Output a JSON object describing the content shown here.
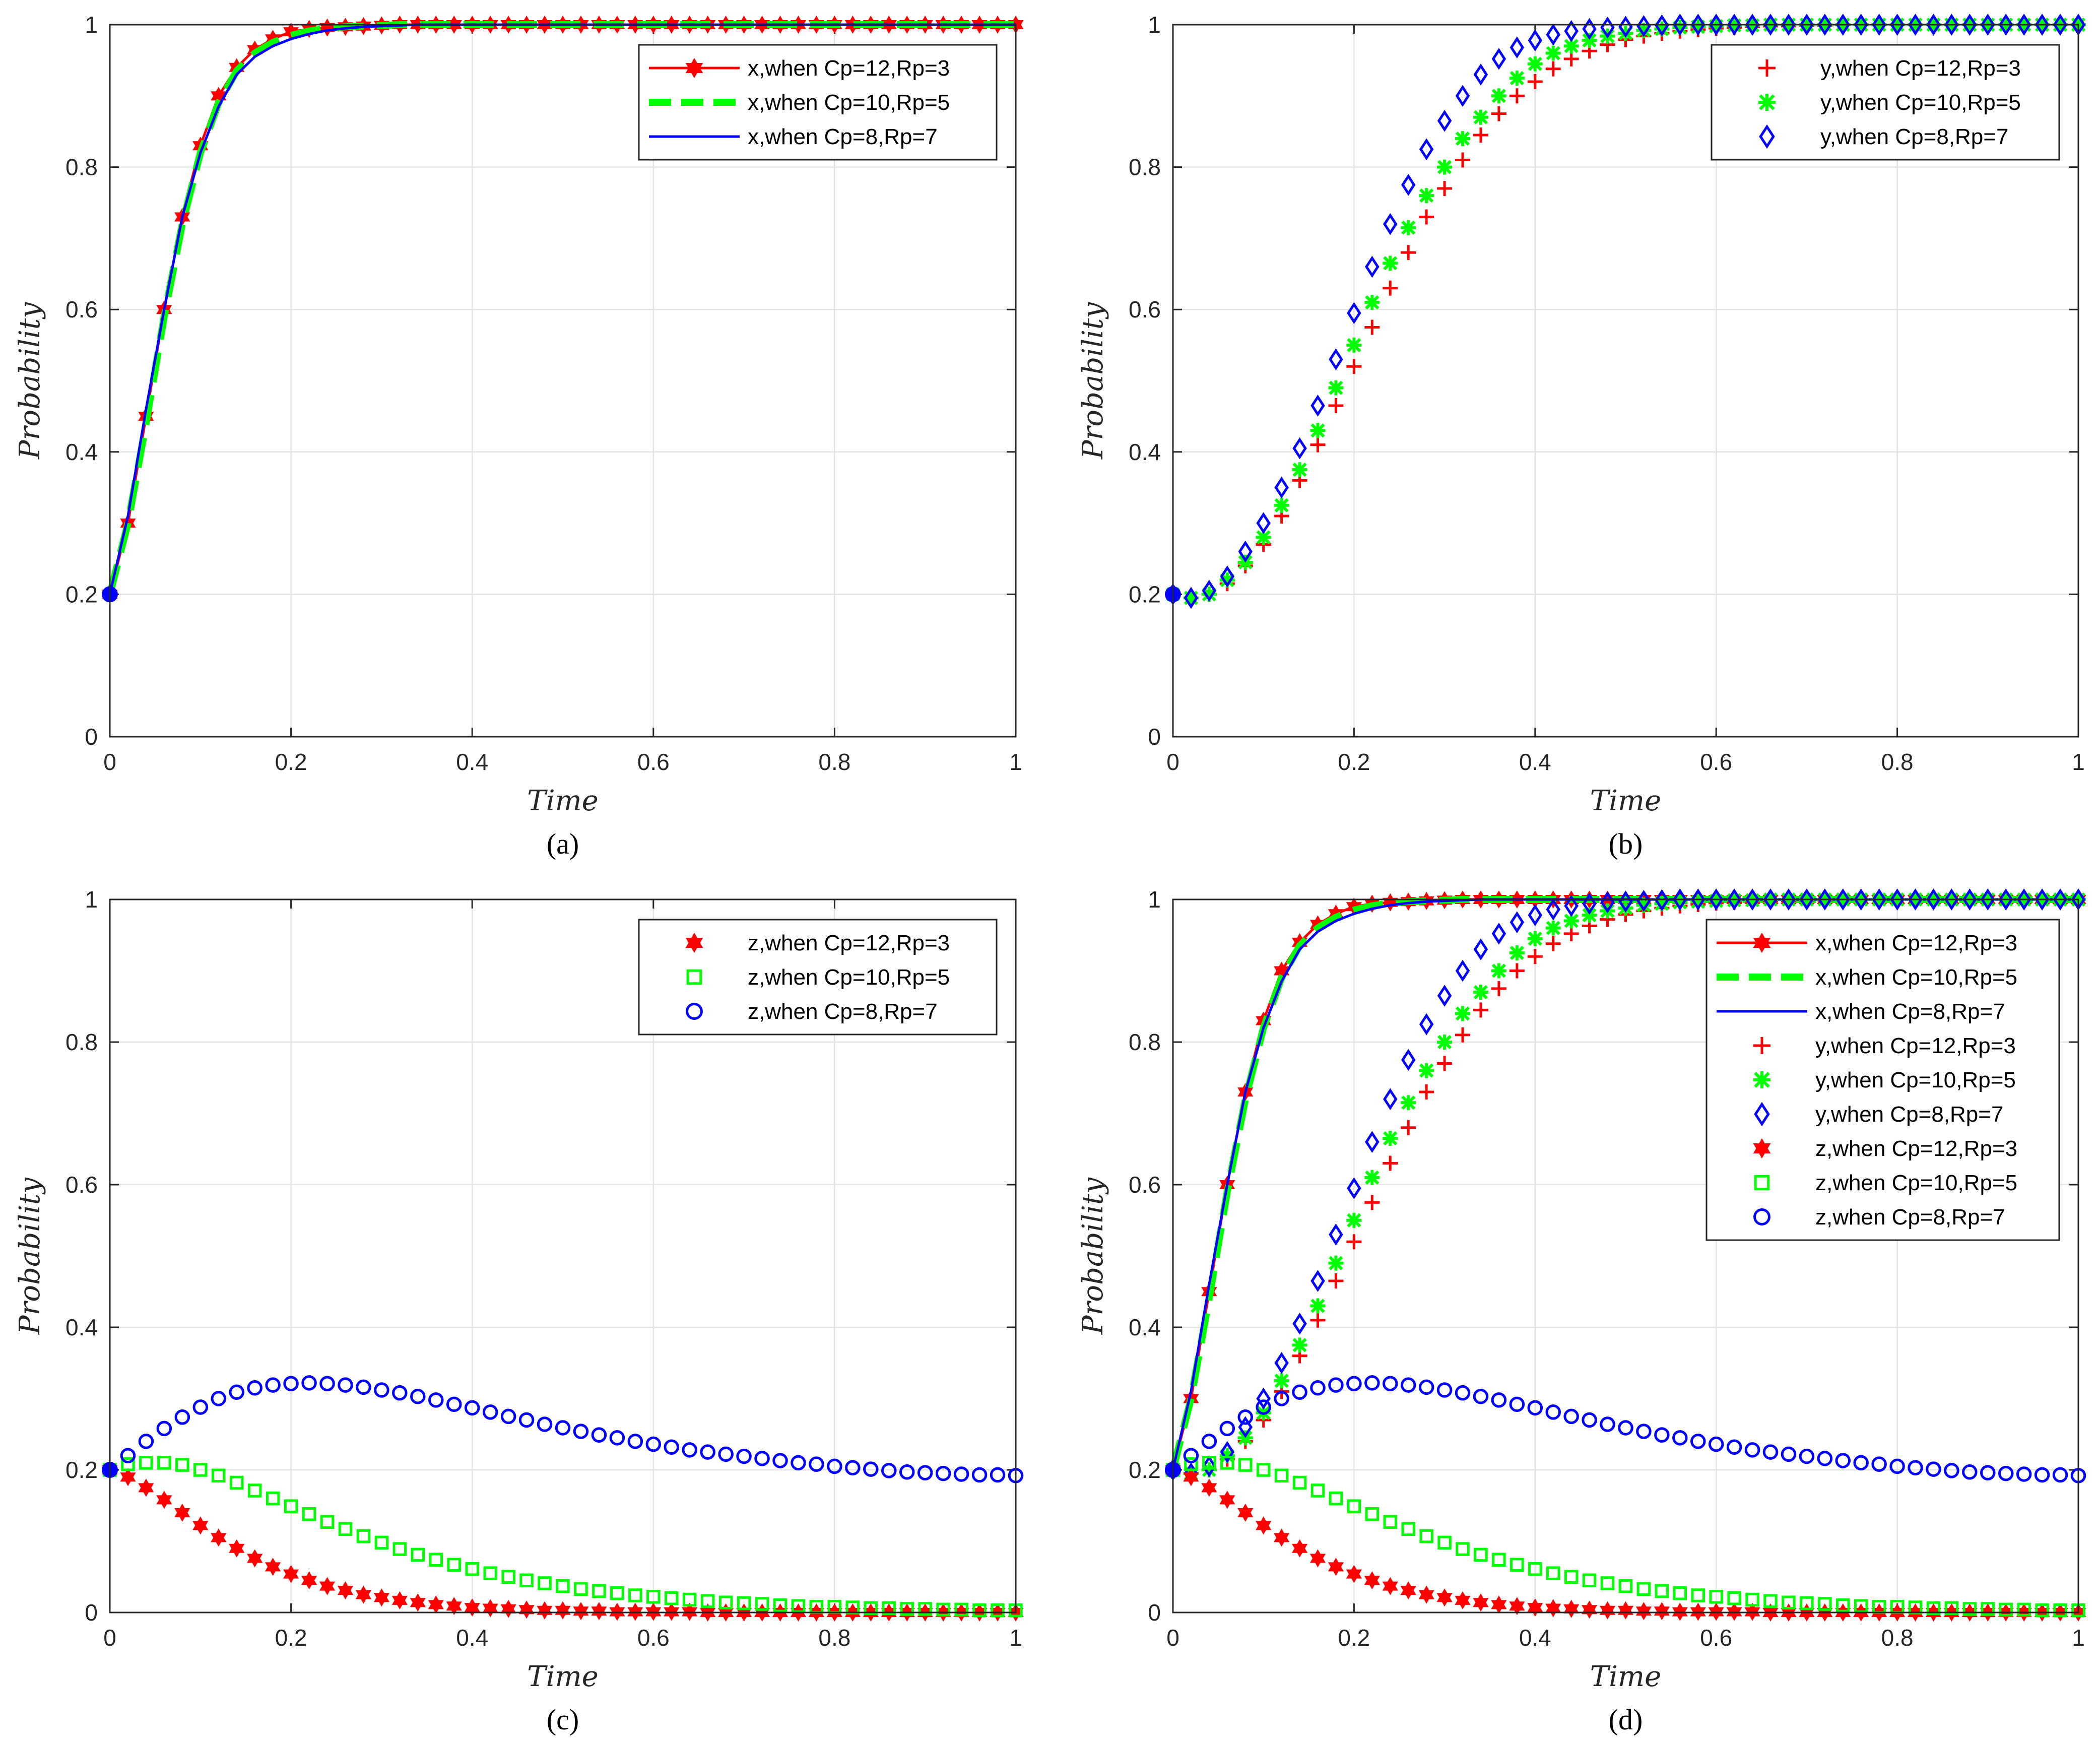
{
  "chart_data": [
    {
      "type": "line",
      "panel_label": "(a)",
      "xlabel": "Time",
      "ylabel": "Probability",
      "xlim": [
        0,
        1
      ],
      "ylim": [
        0,
        1
      ],
      "xticks": [
        "0",
        "0.2",
        "0.4",
        "0.6",
        "0.8",
        "1"
      ],
      "yticks": [
        "0",
        "0.2",
        "0.4",
        "0.6",
        "0.8",
        "1"
      ],
      "grid": true,
      "legend_position": "top-right",
      "series": [
        {
          "name": "x,when Cp=12,Rp=3",
          "var": "x",
          "case": "c12",
          "color": "#ff0000",
          "marker": "hexagram",
          "line": "solid"
        },
        {
          "name": "x,when Cp=10,Rp=5",
          "var": "x",
          "case": "c10",
          "color": "#00ff00",
          "marker": "none",
          "line": "dashed"
        },
        {
          "name": "x,when Cp=8,Rp=7",
          "var": "x",
          "case": "c8",
          "color": "#0000ff",
          "marker": "none",
          "line": "solid"
        }
      ]
    },
    {
      "type": "scatter",
      "panel_label": "(b)",
      "xlabel": "Time",
      "ylabel": "Probability",
      "xlim": [
        0,
        1
      ],
      "ylim": [
        0,
        1
      ],
      "xticks": [
        "0",
        "0.2",
        "0.4",
        "0.6",
        "0.8",
        "1"
      ],
      "yticks": [
        "0",
        "0.2",
        "0.4",
        "0.6",
        "0.8",
        "1"
      ],
      "grid": true,
      "legend_position": "top-right",
      "series": [
        {
          "name": "y,when Cp=12,Rp=3",
          "var": "y",
          "case": "c12",
          "color": "#ff0000",
          "marker": "plus",
          "line": "none"
        },
        {
          "name": "y,when Cp=10,Rp=5",
          "var": "y",
          "case": "c10",
          "color": "#00ff00",
          "marker": "asterisk",
          "line": "none"
        },
        {
          "name": "y,when Cp=8,Rp=7",
          "var": "y",
          "case": "c8",
          "color": "#0000ff",
          "marker": "diamond",
          "line": "none"
        }
      ]
    },
    {
      "type": "scatter",
      "panel_label": "(c)",
      "xlabel": "Time",
      "ylabel": "Probability",
      "xlim": [
        0,
        1
      ],
      "ylim": [
        0,
        1
      ],
      "xticks": [
        "0",
        "0.2",
        "0.4",
        "0.6",
        "0.8",
        "1"
      ],
      "yticks": [
        "0",
        "0.2",
        "0.4",
        "0.6",
        "0.8",
        "1"
      ],
      "grid": true,
      "legend_position": "top-right",
      "series": [
        {
          "name": "z,when Cp=12,Rp=3",
          "var": "z",
          "case": "c12",
          "color": "#ff0000",
          "marker": "hexagram",
          "line": "none"
        },
        {
          "name": "z,when Cp=10,Rp=5",
          "var": "z",
          "case": "c10",
          "color": "#00ff00",
          "marker": "square",
          "line": "none"
        },
        {
          "name": "z,when Cp=8,Rp=7",
          "var": "z",
          "case": "c8",
          "color": "#0000ff",
          "marker": "circle",
          "line": "none"
        }
      ]
    },
    {
      "type": "line",
      "panel_label": "(d)",
      "xlabel": "Time",
      "ylabel": "Probability",
      "xlim": [
        0,
        1
      ],
      "ylim": [
        0,
        1
      ],
      "xticks": [
        "0",
        "0.2",
        "0.4",
        "0.6",
        "0.8",
        "1"
      ],
      "yticks": [
        "0",
        "0.2",
        "0.4",
        "0.6",
        "0.8",
        "1"
      ],
      "grid": true,
      "legend_position": "top-right",
      "series": [
        {
          "name": "x,when Cp=12,Rp=3",
          "var": "x",
          "case": "c12",
          "color": "#ff0000",
          "marker": "hexagram",
          "line": "solid"
        },
        {
          "name": "x,when Cp=10,Rp=5",
          "var": "x",
          "case": "c10",
          "color": "#00ff00",
          "marker": "none",
          "line": "dashed"
        },
        {
          "name": "x,when Cp=8,Rp=7",
          "var": "x",
          "case": "c8",
          "color": "#0000ff",
          "marker": "none",
          "line": "solid"
        },
        {
          "name": "y,when Cp=12,Rp=3",
          "var": "y",
          "case": "c12",
          "color": "#ff0000",
          "marker": "plus",
          "line": "none"
        },
        {
          "name": "y,when Cp=10,Rp=5",
          "var": "y",
          "case": "c10",
          "color": "#00ff00",
          "marker": "asterisk",
          "line": "none"
        },
        {
          "name": "y,when Cp=8,Rp=7",
          "var": "y",
          "case": "c8",
          "color": "#0000ff",
          "marker": "diamond",
          "line": "none"
        },
        {
          "name": "z,when Cp=12,Rp=3",
          "var": "z",
          "case": "c12",
          "color": "#ff0000",
          "marker": "hexagram",
          "line": "none"
        },
        {
          "name": "z,when Cp=10,Rp=5",
          "var": "z",
          "case": "c10",
          "color": "#00ff00",
          "marker": "square",
          "line": "none"
        },
        {
          "name": "z,when Cp=8,Rp=7",
          "var": "z",
          "case": "c8",
          "color": "#0000ff",
          "marker": "circle",
          "line": "none"
        }
      ]
    }
  ],
  "curves": {
    "time": [
      0,
      0.02,
      0.04,
      0.06,
      0.08,
      0.1,
      0.12,
      0.14,
      0.16,
      0.18,
      0.2,
      0.22,
      0.24,
      0.26,
      0.28,
      0.3,
      0.32,
      0.34,
      0.36,
      0.38,
      0.4,
      0.42,
      0.44,
      0.46,
      0.48,
      0.5,
      0.52,
      0.54,
      0.56,
      0.58,
      0.6,
      0.62,
      0.64,
      0.66,
      0.68,
      0.7,
      0.72,
      0.74,
      0.76,
      0.78,
      0.8,
      0.82,
      0.84,
      0.86,
      0.88,
      0.9,
      0.92,
      0.94,
      0.96,
      0.98,
      1.0
    ],
    "x": {
      "c12": [
        0.2,
        0.3,
        0.45,
        0.6,
        0.73,
        0.83,
        0.9,
        0.94,
        0.965,
        0.98,
        0.99,
        0.994,
        0.996,
        0.997,
        0.998,
        0.999,
        1.0,
        1.0,
        1.0,
        1.0,
        1.0,
        1.0,
        1.0,
        1.0,
        1.0,
        1.0,
        1.0,
        1.0,
        1.0,
        1.0,
        1.0,
        1.0,
        1.0,
        1.0,
        1.0,
        1.0,
        1.0,
        1.0,
        1.0,
        1.0,
        1.0,
        1.0,
        1.0,
        1.0,
        1.0,
        1.0,
        1.0,
        1.0,
        1.0,
        1.0,
        1.0
      ],
      "c10": [
        0.2,
        0.3,
        0.44,
        0.59,
        0.72,
        0.82,
        0.89,
        0.935,
        0.96,
        0.975,
        0.985,
        0.991,
        0.995,
        0.997,
        0.998,
        0.999,
        1.0,
        1.0,
        1.0,
        1.0,
        1.0,
        1.0,
        1.0,
        1.0,
        1.0,
        1.0,
        1.0,
        1.0,
        1.0,
        1.0,
        1.0,
        1.0,
        1.0,
        1.0,
        1.0,
        1.0,
        1.0,
        1.0,
        1.0,
        1.0,
        1.0,
        1.0,
        1.0,
        1.0,
        1.0,
        1.0,
        1.0,
        1.0,
        1.0,
        1.0,
        1.0
      ],
      "c8": [
        0.2,
        0.31,
        0.46,
        0.6,
        0.73,
        0.82,
        0.885,
        0.93,
        0.955,
        0.97,
        0.98,
        0.987,
        0.992,
        0.995,
        0.997,
        0.998,
        0.999,
        1.0,
        1.0,
        1.0,
        1.0,
        1.0,
        1.0,
        1.0,
        1.0,
        1.0,
        1.0,
        1.0,
        1.0,
        1.0,
        1.0,
        1.0,
        1.0,
        1.0,
        1.0,
        1.0,
        1.0,
        1.0,
        1.0,
        1.0,
        1.0,
        1.0,
        1.0,
        1.0,
        1.0,
        1.0,
        1.0,
        1.0,
        1.0,
        1.0,
        1.0
      ]
    },
    "y": {
      "c12": [
        0.2,
        0.195,
        0.2,
        0.215,
        0.24,
        0.27,
        0.31,
        0.36,
        0.41,
        0.465,
        0.52,
        0.575,
        0.63,
        0.68,
        0.73,
        0.77,
        0.81,
        0.845,
        0.875,
        0.9,
        0.92,
        0.938,
        0.952,
        0.963,
        0.972,
        0.979,
        0.984,
        0.988,
        0.991,
        0.993,
        0.995,
        0.996,
        0.997,
        0.998,
        0.998,
        0.999,
        0.999,
        1.0,
        1.0,
        1.0,
        1.0,
        1.0,
        1.0,
        1.0,
        1.0,
        1.0,
        1.0,
        1.0,
        1.0,
        1.0,
        1.0
      ],
      "c10": [
        0.2,
        0.195,
        0.2,
        0.22,
        0.245,
        0.28,
        0.325,
        0.375,
        0.43,
        0.49,
        0.55,
        0.61,
        0.665,
        0.715,
        0.76,
        0.8,
        0.84,
        0.87,
        0.9,
        0.925,
        0.945,
        0.96,
        0.97,
        0.978,
        0.984,
        0.988,
        0.992,
        0.994,
        0.996,
        0.997,
        0.998,
        0.999,
        0.999,
        1.0,
        1.0,
        1.0,
        1.0,
        1.0,
        1.0,
        1.0,
        1.0,
        1.0,
        1.0,
        1.0,
        1.0,
        1.0,
        1.0,
        1.0,
        1.0,
        1.0,
        1.0
      ],
      "c8": [
        0.2,
        0.195,
        0.205,
        0.225,
        0.26,
        0.3,
        0.35,
        0.405,
        0.465,
        0.53,
        0.595,
        0.66,
        0.72,
        0.775,
        0.825,
        0.865,
        0.9,
        0.93,
        0.952,
        0.968,
        0.978,
        0.986,
        0.991,
        0.994,
        0.996,
        0.997,
        0.998,
        0.999,
        1.0,
        1.0,
        1.0,
        1.0,
        1.0,
        1.0,
        1.0,
        1.0,
        1.0,
        1.0,
        1.0,
        1.0,
        1.0,
        1.0,
        1.0,
        1.0,
        1.0,
        1.0,
        1.0,
        1.0,
        1.0,
        1.0,
        1.0
      ]
    },
    "z": {
      "c12": [
        0.2,
        0.19,
        0.175,
        0.158,
        0.14,
        0.122,
        0.105,
        0.09,
        0.076,
        0.064,
        0.054,
        0.045,
        0.037,
        0.031,
        0.025,
        0.021,
        0.017,
        0.014,
        0.011,
        0.009,
        0.007,
        0.006,
        0.005,
        0.004,
        0.003,
        0.003,
        0.002,
        0.002,
        0.001,
        0.001,
        0.001,
        0.001,
        0.001,
        0.0,
        0.0,
        0.0,
        0.0,
        0.0,
        0.0,
        0.0,
        0.0,
        0.0,
        0.0,
        0.0,
        0.0,
        0.0,
        0.0,
        0.0,
        0.0,
        0.0,
        0.0
      ],
      "c10": [
        0.2,
        0.208,
        0.21,
        0.21,
        0.207,
        0.2,
        0.192,
        0.182,
        0.171,
        0.16,
        0.149,
        0.138,
        0.127,
        0.117,
        0.107,
        0.098,
        0.089,
        0.081,
        0.074,
        0.067,
        0.061,
        0.055,
        0.05,
        0.045,
        0.041,
        0.037,
        0.033,
        0.03,
        0.027,
        0.024,
        0.022,
        0.02,
        0.018,
        0.016,
        0.014,
        0.013,
        0.012,
        0.01,
        0.009,
        0.008,
        0.008,
        0.007,
        0.006,
        0.006,
        0.005,
        0.005,
        0.004,
        0.004,
        0.003,
        0.003,
        0.003
      ],
      "c8": [
        0.2,
        0.22,
        0.24,
        0.258,
        0.274,
        0.288,
        0.3,
        0.309,
        0.315,
        0.319,
        0.321,
        0.322,
        0.321,
        0.319,
        0.316,
        0.312,
        0.308,
        0.303,
        0.298,
        0.292,
        0.287,
        0.281,
        0.275,
        0.27,
        0.264,
        0.259,
        0.254,
        0.249,
        0.245,
        0.24,
        0.236,
        0.232,
        0.228,
        0.225,
        0.222,
        0.219,
        0.216,
        0.213,
        0.21,
        0.208,
        0.205,
        0.203,
        0.201,
        0.199,
        0.197,
        0.196,
        0.195,
        0.194,
        0.193,
        0.193,
        0.192
      ]
    }
  }
}
